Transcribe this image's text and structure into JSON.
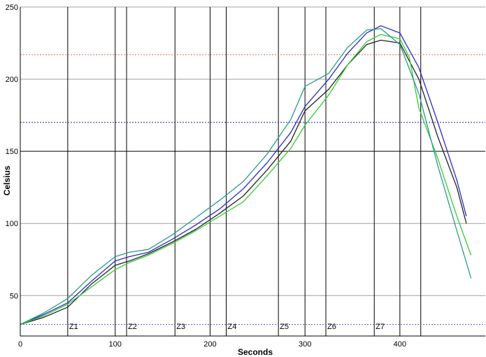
{
  "chart_data": {
    "type": "line",
    "title": "",
    "xlabel": "Seconds",
    "ylabel": "Celsius",
    "xlim": [
      0,
      490
    ],
    "ylim": [
      22,
      250
    ],
    "x_ticks": [
      0,
      100,
      200,
      300,
      400
    ],
    "y_ticks": [
      50,
      100,
      150,
      200,
      250
    ],
    "grid": true,
    "legend": "none",
    "zones": [
      {
        "label": "Z1",
        "x": 50
      },
      {
        "label": "Z2",
        "x": 112
      },
      {
        "label": "Z3",
        "x": 163
      },
      {
        "label": "Z4",
        "x": 217
      },
      {
        "label": "Z5",
        "x": 272
      },
      {
        "label": "Z6",
        "x": 322
      },
      {
        "label": "Z7",
        "x": 373
      },
      {
        "label": "",
        "x": 422
      }
    ],
    "extra_vlines": [
      100,
      200,
      300,
      400
    ],
    "reference_lines": [
      {
        "y": 217,
        "color": "#e06060"
      },
      {
        "y": 170,
        "color": "#2020c0"
      },
      {
        "y": 30,
        "color": "#6060d0"
      }
    ],
    "series": [
      {
        "color": "#222222",
        "x": [
          0,
          25,
          50,
          75,
          100,
          115,
          135,
          160,
          185,
          210,
          235,
          260,
          285,
          300,
          325,
          345,
          365,
          380,
          400,
          420,
          440,
          460,
          470
        ],
        "y": [
          30,
          35,
          42,
          58,
          71,
          74,
          79,
          87,
          96,
          107,
          119,
          137,
          157,
          178,
          193,
          210,
          224,
          227,
          225,
          200,
          160,
          125,
          100
        ]
      },
      {
        "color": "#2a2acc",
        "x": [
          0,
          25,
          50,
          75,
          100,
          115,
          135,
          160,
          185,
          210,
          235,
          260,
          285,
          300,
          325,
          345,
          365,
          380,
          400,
          420,
          440,
          460,
          470
        ],
        "y": [
          30,
          37,
          45,
          60,
          74,
          77,
          80,
          89,
          99,
          110,
          124,
          142,
          163,
          181,
          200,
          218,
          232,
          237,
          232,
          208,
          170,
          130,
          105
        ]
      },
      {
        "color": "#33cc33",
        "x": [
          0,
          25,
          50,
          75,
          100,
          115,
          135,
          160,
          185,
          210,
          235,
          260,
          285,
          300,
          325,
          345,
          365,
          380,
          400,
          410,
          420,
          440,
          460,
          475
        ],
        "y": [
          30,
          36,
          44,
          56,
          68,
          73,
          78,
          86,
          95,
          105,
          115,
          133,
          152,
          168,
          189,
          210,
          226,
          231,
          228,
          215,
          180,
          145,
          105,
          78
        ]
      },
      {
        "color": "#2a9a8a",
        "x": [
          0,
          25,
          50,
          75,
          100,
          115,
          135,
          160,
          185,
          210,
          235,
          260,
          285,
          300,
          325,
          345,
          365,
          380,
          400,
          420,
          440,
          460,
          475
        ],
        "y": [
          30,
          38,
          48,
          64,
          77,
          80,
          82,
          92,
          104,
          116,
          129,
          148,
          172,
          195,
          204,
          222,
          234,
          235,
          224,
          190,
          140,
          95,
          62
        ]
      }
    ]
  }
}
